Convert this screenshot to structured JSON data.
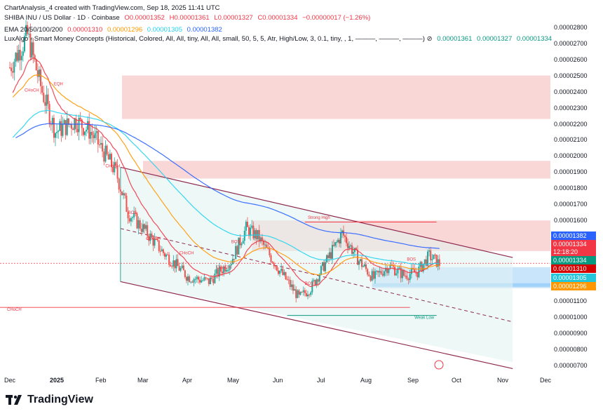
{
  "header": {
    "line1": "ChartAnalysis_4 created with TradingView.com, Sep 18, 2025 11:41 UTC",
    "symbol": "SHIBA INU / US Dollar · 1D · Coinbase",
    "open": "O0.00001352",
    "high": "H0.00001361",
    "low": "L0.00001327",
    "close": "C0.00001334",
    "change": "−0.00000017 (−1.26%)",
    "ema_label": "EMA 20/50/100/200",
    "ema20": "0.00001310",
    "ema50": "0.00001296",
    "ema100": "0.00001305",
    "ema200": "0.00001382",
    "smc_label": "LuxAlgo - Smart Money Concepts (Historical, Colored, All, All, tiny, All, All, small, 50, 5, 5, Atr, High/Low, 3, 0.1, tiny, , 1, ———, ———, ———) ⊘",
    "smc_v1": "0.00001361",
    "smc_v2": "0.00001327",
    "smc_v3": "0.00001334"
  },
  "price_labels": {
    "ema200": "0.00001382",
    "last": "0.00001334",
    "countdown": "12:18:20",
    "ema100_box": "0.00001334",
    "ema20": "0.00001310",
    "ema100": "0.00001305",
    "ema50": "0.00001296"
  },
  "annotations": {
    "strong_high": "Strong High",
    "weak_low": "Weak Low",
    "choch_left": "CHoCH",
    "bos_labels": [
      "BOS",
      "BOS",
      "BOS",
      "BOS"
    ],
    "choch_labels": [
      "CHoCH",
      "CHoCH",
      "CHoCH",
      "CHoCH",
      "CHoCH"
    ],
    "eqh": "EQH"
  },
  "branding": {
    "logo_text": "TradingView"
  },
  "colors": {
    "up": "#26a69a",
    "down": "#ef5350",
    "ema20": "#f23645",
    "ema50": "#ff9800",
    "ema100": "#22d3ee",
    "ema200": "#2962ff",
    "supply_zone": "#f8c9c9",
    "demand_zone": "#bbdefb",
    "channel": "#8e2a4f"
  },
  "chart_data": {
    "type": "candlestick",
    "title": "SHIBA INU / US Dollar · 1D · Coinbase",
    "y_ticks": [
      "0.00002800",
      "0.00002700",
      "0.00002600",
      "0.00002500",
      "0.00002400",
      "0.00002300",
      "0.00002200",
      "0.00002100",
      "0.00002000",
      "0.00001900",
      "0.00001800",
      "0.00001700",
      "0.00001600",
      "0.00001500",
      "0.00001400",
      "0.00001300",
      "0.00001200",
      "0.00001100",
      "0.00001000",
      "0.00000900",
      "0.00000800",
      "0.00000700"
    ],
    "x_ticks": [
      "Dec",
      "2025",
      "Feb",
      "Mar",
      "Apr",
      "May",
      "Jun",
      "Jul",
      "Aug",
      "Sep",
      "Oct",
      "Nov",
      "Dec"
    ],
    "ylim": [
      6.6e-06,
      2.86e-05
    ],
    "approx_close_by_month": {
      "Dec 2024": 2.62e-05,
      "Jan 2025": 1.97e-05,
      "Feb 2025": 1.55e-05,
      "Mar 2025": 1.24e-05,
      "Apr 2025": 1.28e-05,
      "May 2025": 1.48e-05,
      "Jun 2025": 1.22e-05,
      "Jul 2025": 1.45e-05,
      "Aug 2025": 1.25e-05,
      "Sep 2025": 1.33e-05
    },
    "zones": [
      {
        "name": "supply",
        "top": 2.5e-05,
        "bottom": 2.23e-05
      },
      {
        "name": "supply",
        "top": 1.97e-05,
        "bottom": 1.86e-05
      },
      {
        "name": "supply",
        "top": 1.6e-05,
        "bottom": 1.41e-05
      },
      {
        "name": "demand",
        "top": 1.31e-05,
        "bottom": 1.18e-05
      }
    ],
    "levels": {
      "strong_high": 1.59e-05,
      "weak_low": 1.01e-05,
      "choch_left": 1.06e-05
    },
    "last_price": 1.334e-05
  }
}
